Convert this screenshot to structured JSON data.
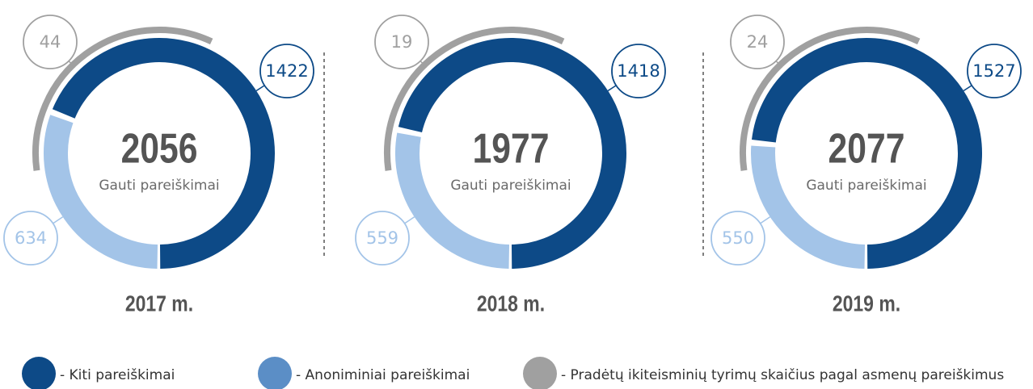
{
  "series": [
    {
      "name": "- Kiti pareiškimai",
      "color": "#0d4a87"
    },
    {
      "name": "- Anoniminiai pareiškimai",
      "color": "#5b8ec6"
    },
    {
      "name": "- Pradėtų ikiteisminių tyrimų skaičius pagal asmenų pareiškimus",
      "color": "#a0a0a0"
    }
  ],
  "chart_data": [
    {
      "type": "donut",
      "title": "2017 m.",
      "total": 2056,
      "total_label": "Gauti pareiškimai",
      "values": [
        1422,
        634,
        44
      ],
      "colors": [
        "#0d4a87",
        "#a3c4e8",
        "#a0a0a0"
      ]
    },
    {
      "type": "donut",
      "title": "2018 m.",
      "total": 1977,
      "total_label": "Gauti pareiškimai",
      "values": [
        1418,
        559,
        19
      ],
      "colors": [
        "#0d4a87",
        "#a3c4e8",
        "#a0a0a0"
      ]
    },
    {
      "type": "donut",
      "title": "2019 m.",
      "total": 2077,
      "total_label": "Gauti pareiškimai",
      "values": [
        1527,
        550,
        24
      ],
      "colors": [
        "#0d4a87",
        "#a3c4e8",
        "#a0a0a0"
      ]
    }
  ]
}
